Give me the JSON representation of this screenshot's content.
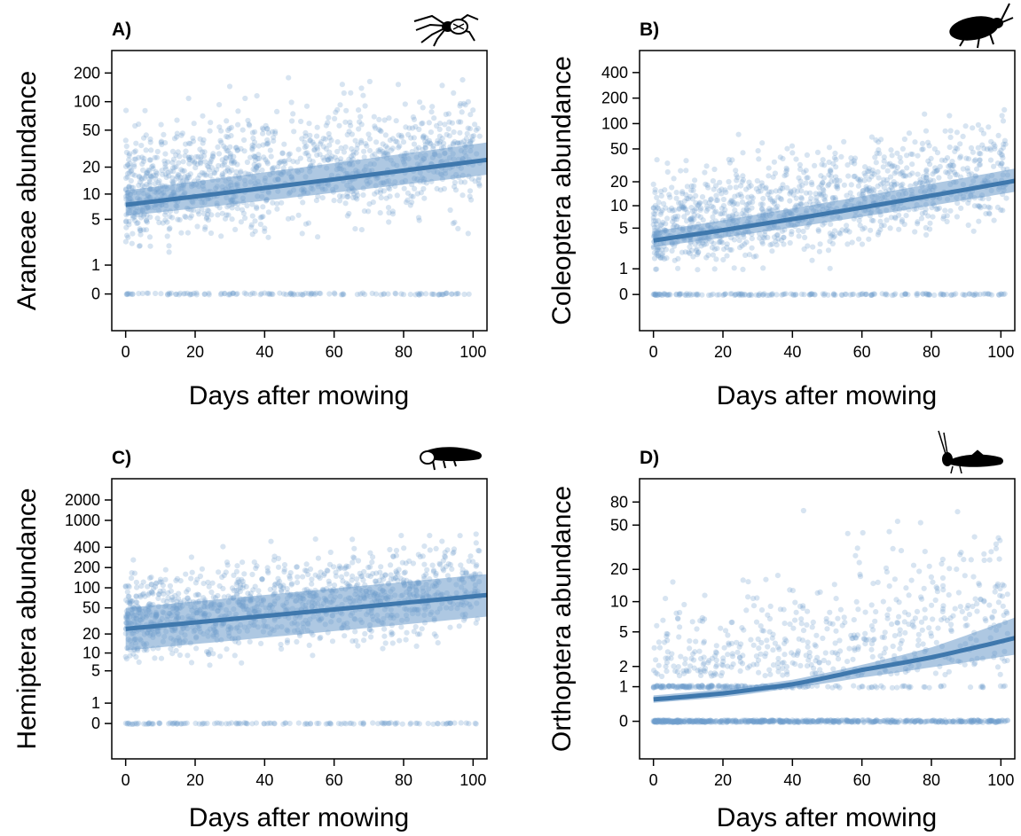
{
  "colors": {
    "point": "#6f9fcb",
    "line": "#3f78ad",
    "band": "#6b9bcb",
    "axis": "#000000"
  },
  "chart_data": [
    {
      "type": "scatter",
      "panel_label": "A)",
      "icon": "spider-icon",
      "xlabel": "Days after mowing",
      "ylabel": "Araneae abundance",
      "xlim": [
        -4,
        104
      ],
      "x_ticks": [
        0,
        20,
        40,
        60,
        80,
        100
      ],
      "y_scale": "pseudo-log",
      "y_ticks": [
        0,
        1,
        5,
        10,
        20,
        50,
        100,
        200
      ],
      "points_summary": "~1400 field samples across days 0-102, abundance 0 to ~210, translucent points",
      "fit": {
        "x": [
          0,
          104
        ],
        "y": [
          7.5,
          24
        ],
        "ci_low": [
          5.5,
          16.5
        ],
        "ci_high": [
          11,
          37
        ]
      }
    },
    {
      "type": "scatter",
      "panel_label": "B)",
      "icon": "beetle-icon",
      "xlabel": "Days after mowing",
      "ylabel": "Coleoptera abundance",
      "xlim": [
        -4,
        104
      ],
      "x_ticks": [
        0,
        20,
        40,
        60,
        80,
        100
      ],
      "y_scale": "pseudo-log",
      "y_ticks": [
        0,
        1,
        5,
        10,
        20,
        50,
        100,
        200,
        400
      ],
      "points_summary": "~1400 field samples across days 0-102, abundance 0 to ~600, translucent points",
      "fit": {
        "x": [
          0,
          104
        ],
        "y": [
          3.3,
          20.5
        ],
        "ci_low": [
          2.6,
          15
        ],
        "ci_high": [
          4.5,
          29
        ]
      }
    },
    {
      "type": "scatter",
      "panel_label": "C)",
      "icon": "leafhopper-icon",
      "xlabel": "Days after mowing",
      "ylabel": "Hemiptera abundance",
      "xlim": [
        -4,
        104
      ],
      "x_ticks": [
        0,
        20,
        40,
        60,
        80,
        100
      ],
      "y_scale": "pseudo-log",
      "y_ticks": [
        0,
        1,
        5,
        10,
        20,
        50,
        100,
        200,
        400,
        1000,
        2000
      ],
      "points_summary": "~1400 field samples across days 0-102, abundance 0 to ~2000, translucent points",
      "fit": {
        "x": [
          0,
          104
        ],
        "y": [
          24,
          78
        ],
        "ci_low": [
          11,
          37
        ],
        "ci_high": [
          50,
          160
        ]
      }
    },
    {
      "type": "scatter",
      "panel_label": "D)",
      "icon": "grasshopper-icon",
      "xlabel": "Days after mowing",
      "ylabel": "Orthoptera abundance",
      "xlim": [
        -4,
        104
      ],
      "x_ticks": [
        0,
        20,
        40,
        60,
        80,
        100
      ],
      "y_scale": "pseudo-log",
      "y_ticks": [
        0,
        1,
        2,
        5,
        10,
        20,
        50,
        80
      ],
      "points_summary": "~1400 field samples across days 0-102, abundance 0 to ~90, many zeros, translucent points",
      "fit": {
        "x": [
          0,
          20,
          40,
          60,
          80,
          104
        ],
        "y": [
          0.55,
          0.75,
          1.1,
          1.8,
          2.6,
          4.3
        ],
        "ci_low": [
          0.45,
          0.62,
          0.95,
          1.4,
          1.95,
          2.8
        ],
        "ci_high": [
          0.68,
          0.9,
          1.3,
          2.1,
          3.4,
          7.0
        ]
      }
    }
  ]
}
